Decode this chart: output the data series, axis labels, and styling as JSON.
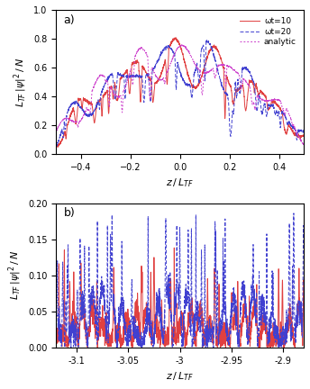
{
  "panel_a": {
    "label": "a)",
    "xlim": [
      -0.5,
      0.5
    ],
    "ylim": [
      0,
      1.0
    ],
    "yticks": [
      0,
      0.2,
      0.4,
      0.6,
      0.8,
      1.0
    ],
    "xticks": [
      -0.4,
      -0.2,
      0,
      0.2,
      0.4
    ]
  },
  "panel_b": {
    "label": "b)",
    "xlim": [
      -3.12,
      -2.88
    ],
    "ylim": [
      0,
      0.2
    ],
    "yticks": [
      0,
      0.05,
      0.1,
      0.15,
      0.2
    ],
    "xticks": [
      -3.1,
      -3.05,
      -3.0,
      -2.95,
      -2.9
    ]
  },
  "legend": {
    "wt10_label": "ωt=10",
    "wt20_label": "ωt=20",
    "analytic_label": "analytic",
    "wt10_color": "#e04040",
    "wt20_color": "#4040d0",
    "analytic_color": "#cc40cc"
  },
  "n_points_a": 2000,
  "n_points_b": 2000,
  "freq_a": 35,
  "freq_b": 300
}
